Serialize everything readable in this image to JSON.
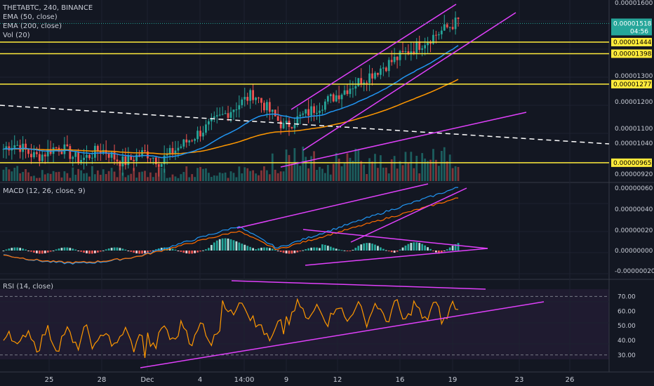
{
  "header": {
    "symbol_line": "THETABTC, 240, BINANCE",
    "indicators": [
      "EMA (50, close)",
      "EMA (200, close)",
      "Vol (20)"
    ]
  },
  "price_axis": {
    "ticks": [
      "0.00001600",
      "0.00001300",
      "0.00001200",
      "0.00001100",
      "0.00001040",
      "0.00000920"
    ],
    "last_price": "0.00001518",
    "countdown": "04:56",
    "last_price_color": "#26a69a",
    "horizontal_levels": [
      "0.00001444",
      "0.00001398",
      "0.00001277",
      "0.00000965"
    ],
    "level_color": "#ffeb3b"
  },
  "macd_panel": {
    "title": "MACD (12, 26, close, 9)",
    "ticks": [
      "0.00000060",
      "0.00000040",
      "0.00000020",
      "0.00000000",
      "-0.00000020"
    ]
  },
  "rsi_panel": {
    "title": "RSI (14, close)",
    "ticks": [
      "70.00",
      "60.00",
      "50.00",
      "40.00",
      "30.00"
    ]
  },
  "x_axis": {
    "ticks": [
      "25",
      "28",
      "Dec",
      "4",
      "14:00",
      "9",
      "12",
      "16",
      "19",
      "23",
      "26"
    ]
  },
  "colors": {
    "background": "#131722",
    "up": "#26a69a",
    "down": "#ef5350",
    "ema50": "#2196f3",
    "ema200": "#ff9800",
    "trendline": "#e040fb",
    "rsi": "#ff9800",
    "macd_line": "#2196f3",
    "signal_line": "#ff6d00"
  },
  "chart_data": {
    "type": "candlestick",
    "x_labels": [
      "25",
      "28",
      "Dec",
      "4",
      "14:00",
      "9",
      "12",
      "16",
      "19",
      "23",
      "26"
    ],
    "price_close": [
      1.02e-05,
      1.01e-05,
      1e-05,
      9.9e-06,
      9.8e-06,
      9.7e-06,
      9.6e-06,
      9.8e-06,
      1e-05,
      1.08e-05,
      1.12e-05,
      1.05e-05,
      1.1e-05,
      1.22e-05,
      1.2e-05,
      1.3e-05,
      1.25e-05,
      1.38e-05,
      1.44e-05,
      1.4e-05,
      1.5e-05,
      1.52e-05
    ],
    "macd_histogram": [
      -2e-09,
      3e-09,
      5e-09,
      -4e-09,
      2e-09,
      8e-09,
      1.8e-08,
      1.2e-08,
      -5e-09,
      1e-08,
      1.5e-08,
      5e-09
    ],
    "rsi_range": [
      30,
      70
    ]
  }
}
